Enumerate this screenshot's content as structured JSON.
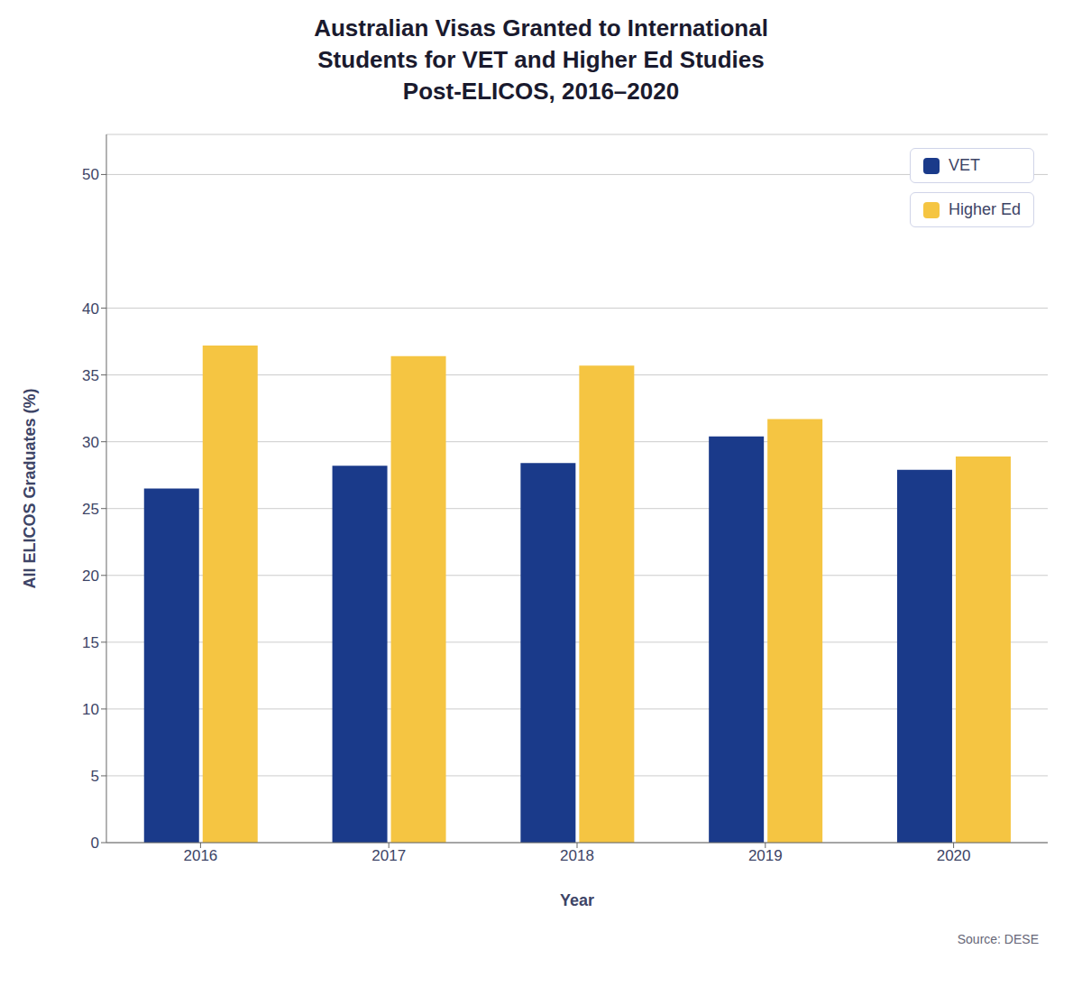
{
  "chart_data": {
    "type": "bar",
    "title": "Australian Visas Granted to International\nStudents for VET and Higher Ed Studies\nPost-ELICOS, 2016–2020",
    "x_label": "Year",
    "y_label": "All ELICOS Graduates (%)",
    "categories": [
      "2016",
      "2017",
      "2018",
      "2019",
      "2020"
    ],
    "series": [
      {
        "name": "VET",
        "color": "#1a3a8a",
        "values": [
          26.5,
          28.2,
          28.4,
          30.4,
          27.9
        ]
      },
      {
        "name": "Higher Ed",
        "color": "#f5c542",
        "values": [
          37.2,
          36.4,
          35.7,
          31.7,
          28.9
        ]
      }
    ],
    "ylim": [
      0,
      53
    ],
    "yticks": [
      0,
      5,
      10,
      15,
      20,
      25,
      30,
      35,
      40,
      50
    ],
    "grid": true,
    "legend": "upper right",
    "annotations": [
      "Source: DESE"
    ]
  }
}
